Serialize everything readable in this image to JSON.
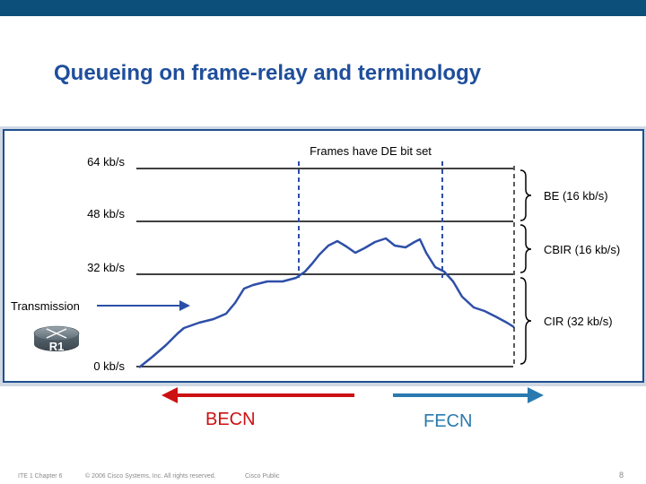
{
  "header": {
    "title": "Queueing on frame-relay and terminology"
  },
  "diagram": {
    "y_levels": [
      "64 kb/s",
      "48 kb/s",
      "32 kb/s",
      "0 kb/s"
    ],
    "de_label": "Frames have DE bit set",
    "brackets": [
      "BE (16 kb/s)",
      "CBIR (16 kb/s)",
      "CIR (32 kb/s)"
    ],
    "transmission_label": "Transmission",
    "router_label": "R1"
  },
  "arrows": {
    "becn": "BECN",
    "fecn": "FECN"
  },
  "footer": {
    "course": "ITE 1 Chapter 6",
    "copyright": "© 2006 Cisco Systems, Inc. All rights reserved.",
    "classification": "Cisco Public",
    "page": "8"
  },
  "colors": {
    "title": "#1f4e9b",
    "top_bar": "#0b4f7a",
    "panel_border": "#1f4f91",
    "dashed_lines": "#2b4fa8",
    "becn_arrow": "#cc1111",
    "fecn_arrow": "#2a7ab0"
  },
  "icons": {
    "router": "router-icon"
  }
}
